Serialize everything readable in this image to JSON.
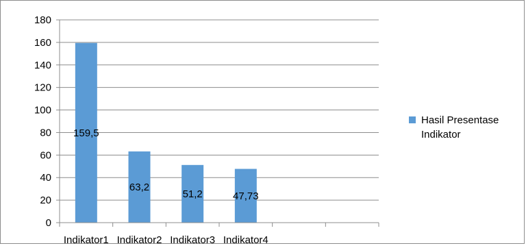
{
  "chart_data": {
    "type": "bar",
    "categories": [
      "Indikator1",
      "Indikator2",
      "Indikator3",
      "Indikator4"
    ],
    "series": [
      {
        "name": "Hasil Presentase Indikator",
        "values": [
          159.5,
          63.2,
          51.2,
          47.73
        ],
        "color": "#5b9bd5"
      }
    ],
    "data_labels": [
      "159,5",
      "63,2",
      "51,2",
      "47,73"
    ],
    "y_ticks": [
      "0",
      "20",
      "40",
      "60",
      "80",
      "100",
      "120",
      "140",
      "160",
      "180"
    ],
    "ylim": [
      0,
      180
    ],
    "x_slots": 6,
    "title": "",
    "xlabel": "",
    "ylabel": "",
    "grid": true,
    "legend_position": "right"
  }
}
